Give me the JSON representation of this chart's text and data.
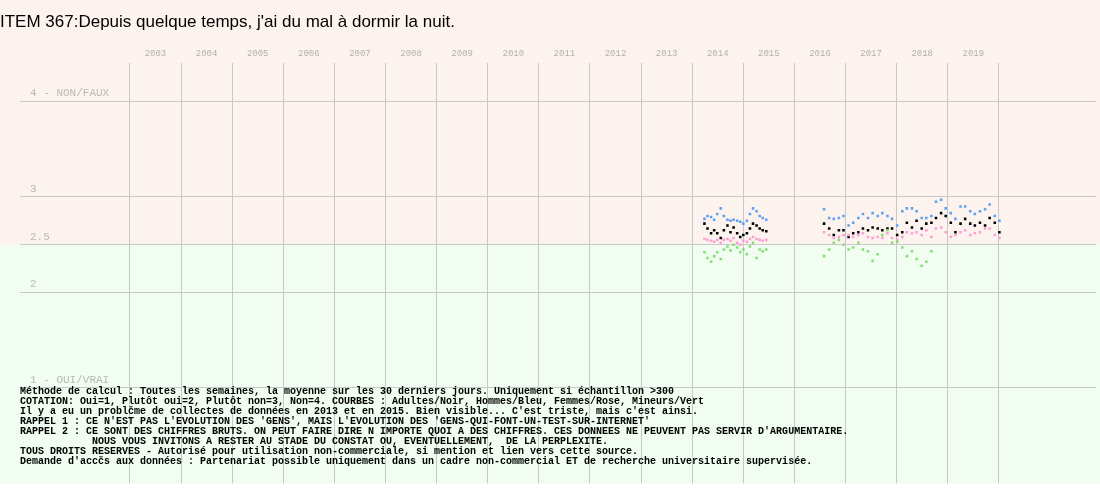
{
  "chart_data": {
    "type": "scatter",
    "title": "ITEM 367:Depuis quelque temps, j'ai du mal à dormir la nuit.",
    "x": [
      2014.24,
      2014.3,
      2014.37,
      2014.43,
      2014.49,
      2014.56,
      2014.62,
      2014.69,
      2014.75,
      2014.81,
      2014.88,
      2014.94,
      2015.0,
      2015.07,
      2015.13,
      2015.19,
      2015.26,
      2015.32,
      2015.38,
      2015.45,
      2016.58,
      2016.68,
      2016.77,
      2016.87,
      2016.96,
      2017.06,
      2017.15,
      2017.25,
      2017.34,
      2017.44,
      2017.53,
      2017.63,
      2017.72,
      2017.82,
      2017.91,
      2018.01,
      2018.11,
      2018.2,
      2018.3,
      2018.39,
      2018.49,
      2018.58,
      2018.68,
      2018.77,
      2018.87,
      2018.96,
      2019.06,
      2019.15,
      2019.25,
      2019.34,
      2019.44,
      2019.53,
      2019.63,
      2019.73,
      2019.82,
      2019.92,
      2020.01
    ],
    "series": [
      {
        "color": "#80e070",
        "values": [
          2.42,
          2.36,
          2.32,
          2.38,
          2.42,
          2.35,
          2.45,
          2.48,
          2.44,
          2.5,
          2.47,
          2.42,
          2.45,
          2.4,
          2.48,
          2.52,
          2.36,
          2.45,
          2.43,
          2.45,
          2.38,
          2.45,
          2.52,
          2.55,
          2.5,
          2.45,
          2.47,
          2.52,
          2.45,
          2.43,
          2.33,
          2.4,
          2.6,
          2.65,
          2.52,
          2.53,
          2.47,
          2.38,
          2.43,
          2.35,
          2.28,
          2.32,
          2.43,
          null,
          null,
          null,
          null,
          null,
          null,
          null,
          null,
          null,
          null,
          null,
          null,
          null,
          null
        ]
      },
      {
        "color": "#f9a0d4",
        "values": [
          2.56,
          2.55,
          2.54,
          2.53,
          2.55,
          2.52,
          2.55,
          2.56,
          2.54,
          2.57,
          2.52,
          2.5,
          2.54,
          2.53,
          2.56,
          2.58,
          2.56,
          2.55,
          2.54,
          2.55,
          2.63,
          2.6,
          2.57,
          2.58,
          2.6,
          2.6,
          2.58,
          2.6,
          2.62,
          2.58,
          2.57,
          2.58,
          2.57,
          2.62,
          2.57,
          2.55,
          2.58,
          2.63,
          2.62,
          2.63,
          2.6,
          2.65,
          2.58,
          2.67,
          2.68,
          2.63,
          2.58,
          2.6,
          2.63,
          2.65,
          2.6,
          2.62,
          2.63,
          2.67,
          2.67,
          2.6,
          2.57
        ]
      },
      {
        "color": "#5fa0f0",
        "values": [
          2.77,
          2.8,
          2.79,
          2.76,
          2.82,
          2.88,
          2.8,
          2.76,
          2.75,
          2.76,
          2.75,
          2.74,
          2.72,
          2.75,
          2.82,
          2.88,
          2.85,
          2.8,
          2.78,
          2.76,
          2.87,
          2.78,
          2.77,
          2.78,
          2.8,
          2.7,
          2.73,
          2.78,
          2.82,
          2.78,
          2.83,
          2.8,
          2.83,
          2.8,
          2.77,
          2.7,
          2.85,
          2.88,
          2.88,
          2.85,
          2.78,
          2.78,
          2.8,
          2.95,
          2.97,
          2.88,
          2.83,
          2.77,
          2.9,
          2.9,
          2.85,
          2.82,
          2.85,
          2.87,
          2.92,
          2.8,
          2.75
        ]
      },
      {
        "color": "#000000",
        "values": [
          2.72,
          2.67,
          2.62,
          2.65,
          2.62,
          2.57,
          2.65,
          2.7,
          2.63,
          2.68,
          2.62,
          2.58,
          2.6,
          2.62,
          2.67,
          2.72,
          2.7,
          2.67,
          2.65,
          2.64,
          2.72,
          2.67,
          2.6,
          2.65,
          2.65,
          2.58,
          2.62,
          2.63,
          2.67,
          2.65,
          2.68,
          2.67,
          2.65,
          2.67,
          2.67,
          2.6,
          2.63,
          2.73,
          2.68,
          2.75,
          2.67,
          2.72,
          2.73,
          2.78,
          2.83,
          2.8,
          2.73,
          2.63,
          2.72,
          2.77,
          2.72,
          2.7,
          2.73,
          2.7,
          2.78,
          2.73,
          2.63
        ]
      }
    ],
    "xlim": [
      2000.85,
      2021.9
    ],
    "xticks": [
      {
        "value": 2003.5,
        "label": "2003"
      },
      {
        "value": 2004.5,
        "label": "2004"
      },
      {
        "value": 2005.5,
        "label": "2005"
      },
      {
        "value": 2006.5,
        "label": "2006"
      },
      {
        "value": 2007.5,
        "label": "2007"
      },
      {
        "value": 2008.5,
        "label": "2008"
      },
      {
        "value": 2009.5,
        "label": "2009"
      },
      {
        "value": 2010.5,
        "label": "2010"
      },
      {
        "value": 2011.5,
        "label": "2011"
      },
      {
        "value": 2012.5,
        "label": "2012"
      },
      {
        "value": 2013.5,
        "label": "2013"
      },
      {
        "value": 2014.5,
        "label": "2014"
      },
      {
        "value": 2015.5,
        "label": "2015"
      },
      {
        "value": 2016.5,
        "label": "2016"
      },
      {
        "value": 2017.5,
        "label": "2017"
      },
      {
        "value": 2018.5,
        "label": "2018"
      },
      {
        "value": 2019.5,
        "label": "2019"
      }
    ],
    "ylim": [
      0,
      4.4
    ],
    "yticks": [
      {
        "value": 1,
        "label": "1 - OUI/VRAI"
      },
      2,
      2.5,
      3,
      {
        "value": 4,
        "label": "4 - NON/FAUX"
      }
    ],
    "bands": [
      {
        "axis": "y",
        "from": 0,
        "to": 2.5,
        "color": "#f0fdf0"
      },
      {
        "axis": "y",
        "from": 2.5,
        "to": 4.4,
        "color": "#fdf3ee"
      }
    ],
    "grid": true,
    "legend": false,
    "marker": "square",
    "annotations": [
      "Méthode de calcul : Toutes les semaines, la moyenne sur les 30 derniers jours. Uniquement si échantillon >300",
      "COTATION: Oui=1, Plutôt oui=2, Plutôt non=3, Non=4. COURBES : Adultes/Noir, Hommes/Bleu, Femmes/Rose, Mineurs/Vert",
      "Il y a eu un problčme de collectes de données en 2013 et en 2015. Bien visible... C'est triste, mais c'est ainsi.",
      "RAPPEL 1 : CE N'EST PAS L'EVOLUTION DES 'GENS', MAIS L'EVOLUTION DES 'GENS-QUI-FONT-UN-TEST-SUR-INTERNET'",
      "RAPPEL 2 : CE SONT DES CHIFFRES BRUTS. ON PEUT FAIRE DIRE N IMPORTE QUOI A DES CHIFFRES. CES DONNEES NE PEUVENT PAS SERVIR D'ARGUMENTAIRE.",
      "            NOUS VOUS INVITONS A RESTER AU STADE DU CONSTAT OU, EVENTUELLEMENT,  DE LA PERPLEXITE.",
      "TOUS DROITS RESERVES - Autorisé pour utilisation non-commerciale, si mention et lien vers cette source.",
      "Demande d'accčs aux données : Partenariat possible uniquement dans un cadre non-commercial ET de recherche universitaire supervisée."
    ]
  }
}
